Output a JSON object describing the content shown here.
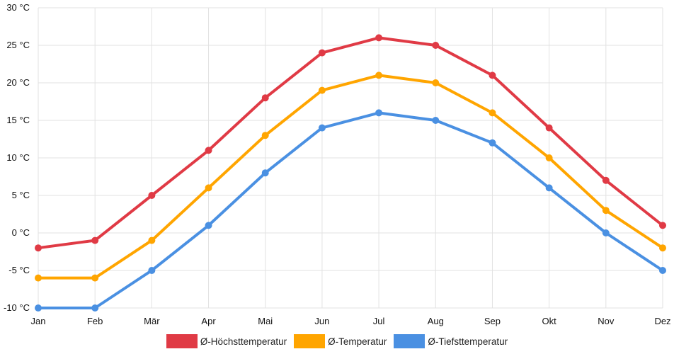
{
  "chart_data": {
    "type": "line",
    "categories": [
      "Jan",
      "Feb",
      "Mär",
      "Apr",
      "Mai",
      "Jun",
      "Jul",
      "Aug",
      "Sep",
      "Okt",
      "Nov",
      "Dez"
    ],
    "y_ticks": [
      "-10 °C",
      "-5 °C",
      "0 °C",
      "5 °C",
      "10 °C",
      "15 °C",
      "20 °C",
      "25 °C",
      "30 °C"
    ],
    "y_tick_values": [
      -10,
      -5,
      0,
      5,
      10,
      15,
      20,
      25,
      30
    ],
    "ylim": [
      -10,
      30
    ],
    "grid": true,
    "legend_position": "bottom",
    "series": [
      {
        "name": "Ø-Höchsttemperatur",
        "color": "#e03a45",
        "values": [
          -2,
          -1,
          5,
          11,
          18,
          24,
          26,
          25,
          21,
          14,
          7,
          1
        ]
      },
      {
        "name": "Ø-Temperatur",
        "color": "#ffa500",
        "values": [
          -6,
          -6,
          -1,
          6,
          13,
          19,
          21,
          20,
          16,
          10,
          3,
          -2
        ]
      },
      {
        "name": "Ø-Tiefsttemperatur",
        "color": "#4a90e2",
        "values": [
          -10,
          -10,
          -5,
          1,
          8,
          14,
          16,
          15,
          12,
          6,
          0,
          -5
        ]
      }
    ]
  }
}
